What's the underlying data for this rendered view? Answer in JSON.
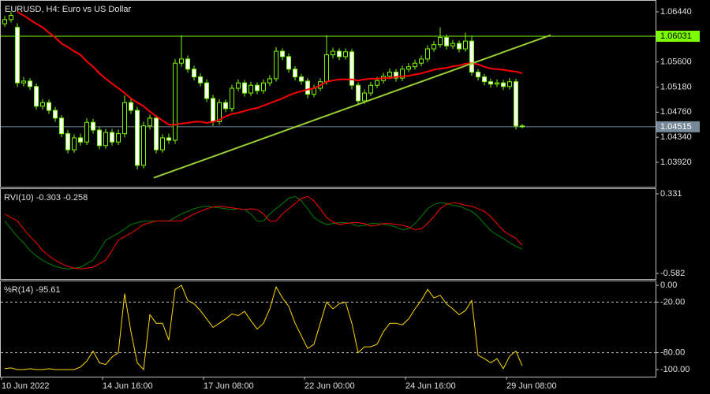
{
  "chart_data": [
    {
      "type": "candlestick",
      "title": "EURUSD, H4:  Euro vs US Dollar",
      "categories": [
        "10 Jun 2022",
        null,
        null,
        null,
        null,
        null,
        null,
        null,
        null,
        null,
        null,
        null,
        null,
        null,
        null,
        null,
        "14 Jun 16:00",
        null,
        null,
        null,
        null,
        null,
        null,
        null,
        null,
        null,
        null,
        null,
        null,
        null,
        null,
        null,
        "17 Jun 08:00",
        null,
        null,
        null,
        null,
        null,
        null,
        null,
        null,
        null,
        null,
        null,
        null,
        null,
        null,
        null,
        "22 Jun 00:00",
        null,
        null,
        null,
        null,
        null,
        null,
        null,
        null,
        null,
        null,
        null,
        null,
        null,
        null,
        null,
        "24 Jun 16:00",
        null,
        null,
        null,
        null,
        null,
        null,
        null,
        null,
        null,
        null,
        null,
        null,
        null,
        null,
        null,
        "29 Jun 08:00",
        null,
        null
      ],
      "open": [
        1.0624,
        1.0631,
        1.0618,
        1.0525,
        1.0528,
        1.0519,
        1.0486,
        1.0492,
        1.0479,
        1.0466,
        1.044,
        1.0413,
        1.0433,
        1.0426,
        1.0459,
        1.0446,
        1.042,
        1.0442,
        1.0426,
        1.044,
        1.0492,
        1.0479,
        1.0387,
        1.0453,
        1.0466,
        1.0413,
        1.0433,
        1.0429,
        1.0558,
        1.0565,
        1.0548,
        1.0535,
        1.0525,
        1.0499,
        1.046,
        1.0492,
        1.0482,
        1.0516,
        1.0525,
        1.0508,
        1.0521,
        1.0512,
        1.0525,
        1.0532,
        1.0578,
        1.0569,
        1.0548,
        1.0535,
        1.0528,
        1.0506,
        1.0516,
        1.0527,
        1.0572,
        1.0578,
        1.0569,
        1.0577,
        1.0521,
        1.0495,
        1.0508,
        1.0521,
        1.0529,
        1.0536,
        1.0543,
        1.0533,
        1.0548,
        1.0552,
        1.0558,
        1.0565,
        1.0582,
        1.0589,
        1.0601,
        1.0587,
        1.0591,
        1.0582,
        1.0595,
        1.0543,
        1.0535,
        1.0527,
        1.0523,
        1.0525,
        1.0519,
        1.0527,
        1.0453
      ],
      "high": [
        1.0637,
        1.0645,
        1.0625,
        1.0535,
        1.0533,
        1.0524,
        1.0498,
        1.0497,
        1.0485,
        1.0471,
        1.0446,
        1.0439,
        1.044,
        1.0466,
        1.0465,
        1.0451,
        1.0448,
        1.0448,
        1.0447,
        1.0504,
        1.0498,
        1.0485,
        1.046,
        1.0472,
        1.0471,
        1.0439,
        1.044,
        1.0565,
        1.0605,
        1.0571,
        1.0554,
        1.0541,
        1.0531,
        1.0505,
        1.0498,
        1.0497,
        1.0522,
        1.0531,
        1.053,
        1.0527,
        1.0526,
        1.0531,
        1.0538,
        1.0585,
        1.0583,
        1.0574,
        1.0553,
        1.054,
        1.0533,
        1.0522,
        1.0533,
        1.0605,
        1.0584,
        1.0583,
        1.0583,
        1.0582,
        1.0526,
        1.0514,
        1.0527,
        1.0535,
        1.0542,
        1.0549,
        1.0548,
        1.0554,
        1.0558,
        1.0564,
        1.0571,
        1.0588,
        1.0595,
        1.0618,
        1.0606,
        1.0597,
        1.0596,
        1.0609,
        1.0604,
        1.0548,
        1.054,
        1.0532,
        1.0531,
        1.053,
        1.0533,
        1.0532,
        1.0456
      ],
      "low": [
        1.0619,
        1.0626,
        1.0518,
        1.0519,
        1.0513,
        1.048,
        1.048,
        1.0473,
        1.046,
        1.0434,
        1.0407,
        1.0408,
        1.042,
        1.0421,
        1.044,
        1.0414,
        1.0415,
        1.042,
        1.0421,
        1.0434,
        1.0473,
        1.038,
        1.0382,
        1.0447,
        1.0407,
        1.0408,
        1.0423,
        1.0423,
        1.0552,
        1.0542,
        1.0529,
        1.0519,
        1.0493,
        1.0453,
        1.0455,
        1.0476,
        1.0477,
        1.0511,
        1.0502,
        1.0503,
        1.0506,
        1.0507,
        1.052,
        1.0527,
        1.0563,
        1.0542,
        1.0529,
        1.0522,
        1.0499,
        1.0501,
        1.0511,
        1.0522,
        1.0566,
        1.0563,
        1.0564,
        1.0514,
        1.0489,
        1.049,
        1.0503,
        1.0516,
        1.0524,
        1.0531,
        1.0527,
        1.0528,
        1.0543,
        1.0547,
        1.0553,
        1.056,
        1.0577,
        1.0584,
        1.0581,
        1.0582,
        1.0576,
        1.0577,
        1.0537,
        1.0529,
        1.0521,
        1.0517,
        1.0518,
        1.0513,
        1.0514,
        1.0447,
        1.0449
      ],
      "close": [
        1.0631,
        1.0638,
        1.0525,
        1.0528,
        1.0519,
        1.0486,
        1.0492,
        1.0479,
        1.0466,
        1.044,
        1.0413,
        1.0433,
        1.0426,
        1.0459,
        1.0446,
        1.042,
        1.0442,
        1.0426,
        1.044,
        1.0492,
        1.0479,
        1.0387,
        1.0453,
        1.0466,
        1.0413,
        1.0433,
        1.0429,
        1.0558,
        1.0565,
        1.0548,
        1.0535,
        1.0525,
        1.0499,
        1.046,
        1.0492,
        1.0482,
        1.0516,
        1.0525,
        1.0508,
        1.0521,
        1.0512,
        1.0525,
        1.0532,
        1.0578,
        1.0569,
        1.0548,
        1.0535,
        1.0528,
        1.0506,
        1.0516,
        1.0527,
        1.0572,
        1.0578,
        1.0569,
        1.0577,
        1.0521,
        1.0495,
        1.0508,
        1.0521,
        1.0529,
        1.0536,
        1.0543,
        1.0533,
        1.0548,
        1.0552,
        1.0558,
        1.0565,
        1.0582,
        1.0589,
        1.0601,
        1.0587,
        1.0591,
        1.0582,
        1.0595,
        1.0543,
        1.0535,
        1.0527,
        1.0523,
        1.0525,
        1.0519,
        1.0527,
        1.0453,
        1.04515
      ],
      "ma": [
        null,
        null,
        1.0644,
        1.0638,
        1.0631,
        1.0624,
        1.0618,
        1.0609,
        1.0601,
        1.0591,
        1.0585,
        1.0578,
        1.0572,
        1.0561,
        1.0552,
        1.0541,
        1.0532,
        1.0524,
        1.0516,
        1.0508,
        1.0499,
        1.0492,
        1.0486,
        1.0477,
        1.0469,
        1.0462,
        1.0455,
        1.0455,
        1.0457,
        1.0458,
        1.046,
        1.046,
        1.0458,
        1.046,
        1.0463,
        1.0469,
        1.0473,
        1.0475,
        1.0478,
        1.0481,
        1.0483,
        1.0487,
        1.0491,
        1.0495,
        1.0499,
        1.0504,
        1.0508,
        1.0511,
        1.0514,
        1.0516,
        1.0521,
        1.0527,
        1.0529,
        1.0531,
        1.0531,
        1.0531,
        1.0529,
        1.0531,
        1.0532,
        1.0532,
        1.0533,
        1.0533,
        1.0535,
        1.0536,
        1.0537,
        1.0539,
        1.0541,
        1.0544,
        1.0547,
        1.0549,
        1.055,
        1.0553,
        1.0554,
        1.0557,
        1.0558,
        1.0556,
        1.0552,
        1.0549,
        1.0548,
        1.0547,
        1.0545,
        1.0544,
        1.0541
      ],
      "ma_color": "#ff0000",
      "color": "#7cfc00",
      "up_fill": "#000000",
      "down_fill": "#ffffff",
      "trendline": {
        "x": [
          23.6,
          86.5
        ],
        "values": [
          1.0366,
          1.0605
        ],
        "color": "#9acd32"
      },
      "hline": {
        "value": 1.06031,
        "color": "#7cfc00"
      },
      "bid": {
        "value": 1.04515,
        "color": "#778899"
      },
      "ylim": [
        1.03511,
        1.06638
      ],
      "yticks": [
        {
          "value": 1.0644,
          "label": "1.06440"
        },
        {
          "value": 1.056,
          "label": "1.05600"
        },
        {
          "value": 1.0518,
          "label": "1.05180"
        },
        {
          "value": 1.0476,
          "label": "1.04760"
        },
        {
          "value": 1.0434,
          "label": "1.04340"
        },
        {
          "value": 1.0392,
          "label": "1.03920"
        }
      ]
    },
    {
      "type": "line",
      "title": "RVI(10) -0.303 -0.258",
      "series": [
        {
          "color": "#008000",
          "values": [
            0.02,
            -0.07,
            -0.16,
            -0.23,
            -0.32,
            -0.38,
            -0.43,
            -0.47,
            -0.5,
            -0.52,
            -0.53,
            -0.52,
            -0.51,
            -0.47,
            -0.43,
            -0.32,
            -0.2,
            -0.16,
            -0.12,
            -0.07,
            -0.02,
            0,
            0.02,
            0.02,
            0.02,
            0.02,
            0.02,
            0.06,
            0.1,
            0.13,
            0.16,
            0.18,
            0.19,
            0.18,
            0.17,
            0.16,
            0.15,
            0.16,
            0.15,
            0.1,
            0.02,
            0.02,
            0.1,
            0.16,
            0.22,
            0.28,
            0.3,
            0.25,
            0.16,
            0.06,
            0.01,
            -0.02,
            -0.01,
            0,
            0,
            -0.01,
            -0.04,
            -0.03,
            -0.01,
            -0.01,
            -0.02,
            -0.03,
            -0.05,
            -0.08,
            -0.07,
            -0.01,
            0.07,
            0.16,
            0.21,
            0.23,
            0.22,
            0.2,
            0.19,
            0.16,
            0.13,
            0.07,
            -0.01,
            -0.09,
            -0.14,
            -0.18,
            -0.23,
            -0.27,
            -0.303
          ]
        },
        {
          "color": "#ff0000",
          "values": [
            0.1,
            0.06,
            0.02,
            -0.07,
            -0.16,
            -0.23,
            -0.32,
            -0.38,
            -0.43,
            -0.47,
            -0.5,
            -0.52,
            -0.53,
            -0.52,
            -0.51,
            -0.47,
            -0.43,
            -0.32,
            -0.2,
            -0.16,
            -0.12,
            -0.07,
            -0.02,
            0,
            0.02,
            0.02,
            0.02,
            0.02,
            0.02,
            0.06,
            0.1,
            0.13,
            0.16,
            0.18,
            0.19,
            0.18,
            0.17,
            0.16,
            0.15,
            0.16,
            0.15,
            0.1,
            0.02,
            0.02,
            0.1,
            0.16,
            0.22,
            0.28,
            0.3,
            0.25,
            0.16,
            0.06,
            0.01,
            -0.02,
            -0.01,
            0,
            0,
            -0.01,
            -0.04,
            -0.03,
            -0.01,
            -0.01,
            -0.02,
            -0.03,
            -0.05,
            -0.08,
            -0.07,
            -0.01,
            0.07,
            0.16,
            0.21,
            0.23,
            0.22,
            0.2,
            0.19,
            0.16,
            0.13,
            0.07,
            -0.01,
            -0.09,
            -0.14,
            -0.18,
            -0.258
          ]
        }
      ],
      "ylim": [
        -0.645,
        0.394
      ],
      "yticks": [
        0.331,
        -0.582
      ]
    },
    {
      "type": "line",
      "title": "%R(14) -95.61",
      "series": [
        {
          "color": "#ffd700",
          "values": [
            -99,
            -98,
            -100,
            -100,
            -99,
            -100,
            -100,
            -99,
            -100,
            -100,
            -100,
            -100,
            -97,
            -90,
            -78,
            -92,
            -94,
            -85,
            -80,
            -10,
            -55,
            -92,
            -100,
            -35,
            -45,
            -45,
            -65,
            -5,
            0,
            -18,
            -22,
            -30,
            -40,
            -50,
            -45,
            -40,
            -34,
            -36,
            -31,
            -42,
            -52,
            -45,
            -28,
            -2,
            -15,
            -25,
            -45,
            -60,
            -75,
            -70,
            -45,
            -20,
            -28,
            -22,
            -20,
            -45,
            -80,
            -73,
            -73,
            -70,
            -55,
            -45,
            -45,
            -47,
            -40,
            -28,
            -18,
            -5,
            -15,
            -12,
            -22,
            -28,
            -35,
            -30,
            -18,
            -83,
            -87,
            -92,
            -87,
            -99,
            -84,
            -78,
            -95.61
          ]
        }
      ],
      "levels": [
        -20,
        -80
      ],
      "ylim": [
        -108.4,
        5.6
      ],
      "yticks": [
        {
          "value": 0,
          "label": "0.00"
        },
        {
          "value": -20,
          "label": "-20.00"
        },
        {
          "value": -80,
          "label": "-80.00"
        },
        {
          "value": -100,
          "label": "-100.00"
        }
      ]
    }
  ]
}
